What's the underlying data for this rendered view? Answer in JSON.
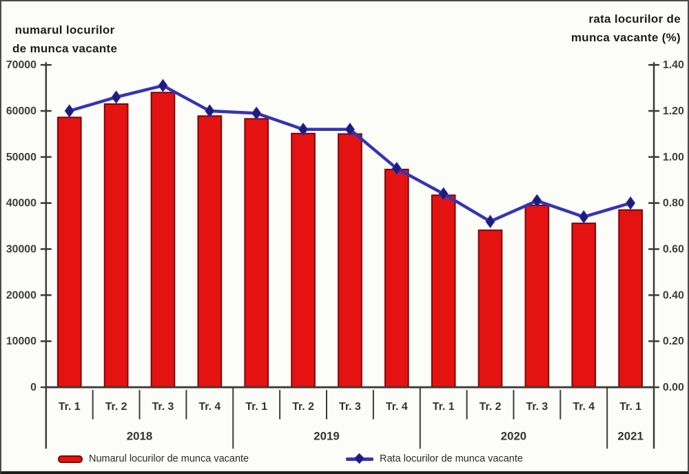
{
  "chart": {
    "left_axis_title_line1": "numarul locurilor",
    "left_axis_title_line2": "de munca  vacante",
    "right_axis_title_line1": "rata locurilor de",
    "right_axis_title_line2": "munca vacante (%)"
  },
  "chart_data": {
    "type": "combo-bar-line",
    "categories": [
      "Tr. 1",
      "Tr. 2",
      "Tr. 3",
      "Tr. 4",
      "Tr. 1",
      "Tr. 2",
      "Tr. 3",
      "Tr. 4",
      "Tr. 1",
      "Tr. 2",
      "Tr. 3",
      "Tr. 4",
      "Tr. 1"
    ],
    "year_groups": [
      {
        "label": "2018",
        "count": 4
      },
      {
        "label": "2019",
        "count": 4
      },
      {
        "label": "2020",
        "count": 4
      },
      {
        "label": "2021",
        "count": 1
      }
    ],
    "series": [
      {
        "name": "Numarul locurilor de munca vacante",
        "type": "bar",
        "axis": "left",
        "values": [
          58600,
          61500,
          64000,
          58900,
          58300,
          55100,
          55000,
          47300,
          41700,
          34100,
          39500,
          35600,
          38500
        ]
      },
      {
        "name": "Rata locurilor de munca vacante",
        "type": "line",
        "axis": "right",
        "values": [
          1.2,
          1.26,
          1.31,
          1.2,
          1.19,
          1.12,
          1.12,
          0.95,
          0.84,
          0.72,
          0.81,
          0.74,
          0.8
        ]
      }
    ],
    "left_axis": {
      "min": 0,
      "max": 70000,
      "tick_step": 10000,
      "tick_labels": [
        "0",
        "10000",
        "20000",
        "30000",
        "40000",
        "50000",
        "60000",
        "70000"
      ]
    },
    "right_axis": {
      "min": 0,
      "max": 1.4,
      "tick_step": 0.2,
      "tick_labels": [
        "0.00",
        "0.20",
        "0.40",
        "0.60",
        "0.80",
        "1.00",
        "1.20",
        "1.40"
      ]
    },
    "colors": {
      "bar_fill": "#e51212",
      "bar_border": "#7c0606",
      "line": "#3434b8",
      "marker": "#1c1c7a",
      "axis": "#3a3a3a",
      "text": "#333333"
    },
    "legend": [
      {
        "label": "Numarul locurilor de munca vacante"
      },
      {
        "label": "Rata locurilor de munca vacante"
      }
    ],
    "grid": false,
    "legend_position": "bottom"
  }
}
